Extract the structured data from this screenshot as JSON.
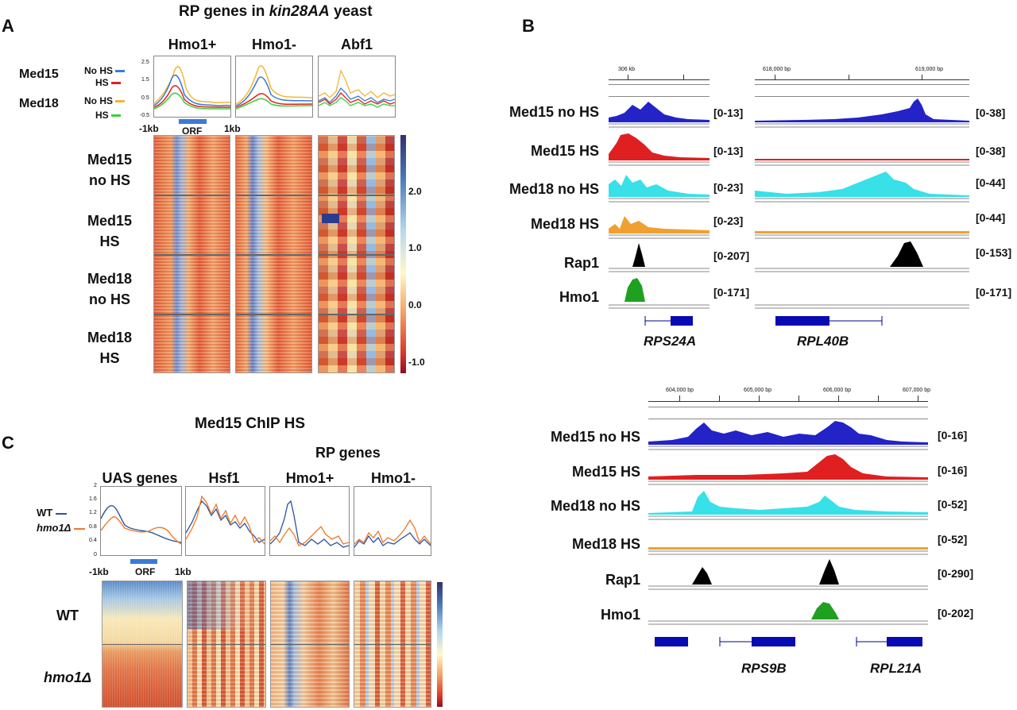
{
  "panel_a": {
    "letter": "A",
    "title_prefix": "RP genes in ",
    "title_italic": "kin28AA",
    "title_suffix": " yeast",
    "columns": [
      "Hmo1+",
      "Hmo1-",
      "Abf1"
    ],
    "legend_groups": [
      "Med15",
      "Med18"
    ],
    "legend_items": [
      {
        "label": "No HS",
        "color": "#3a7bd5"
      },
      {
        "label": "HS",
        "color": "#e02020"
      },
      {
        "label": "No HS",
        "color": "#f2b632"
      },
      {
        "label": "HS",
        "color": "#3fce3f"
      }
    ],
    "y_ticks": [
      "2.5",
      "1.5",
      "0.5",
      "-0.5"
    ],
    "x_left": "-1kb",
    "x_orf": "ORF",
    "x_right": "1kb",
    "rows": [
      {
        "l1": "Med15",
        "l2": "no HS"
      },
      {
        "l1": "Med15",
        "l2": "HS"
      },
      {
        "l1": "Med18",
        "l2": "no HS"
      },
      {
        "l1": "Med18",
        "l2": "HS"
      }
    ],
    "colorbar_ticks": [
      "2.0",
      "1.0",
      "0.0",
      "-1.0"
    ]
  },
  "panel_b": {
    "letter": "B",
    "top": {
      "tracks": [
        "Med15 no HS",
        "Med15 HS",
        "Med18 no HS",
        "Med18 HS",
        "Rap1",
        "Hmo1"
      ],
      "left_scale": "306 kb",
      "right_scale_1": "618,000 bp",
      "right_scale_2": "619,000 bp",
      "left_ranges": [
        "[0-13]",
        "[0-13]",
        "[0-23]",
        "[0-23]",
        "[0-207]",
        "[0-171]"
      ],
      "right_ranges": [
        "[0-38]",
        "[0-38]",
        "[0-44]",
        "[0-44]",
        "[0-153]",
        "[0-171]"
      ],
      "genes": [
        "RPS24A",
        "RPL40B"
      ]
    },
    "bottom": {
      "tracks": [
        "Med15 no HS",
        "Med15 HS",
        "Med18 no HS",
        "Med18 HS",
        "Rap1",
        "Hmo1"
      ],
      "scale": [
        "604,000 bp",
        "605,000 bp",
        "606,000 bp",
        "607,000 bp"
      ],
      "ranges": [
        "[0-16]",
        "[0-16]",
        "[0-52]",
        "[0-52]",
        "[0-290]",
        "[0-202]"
      ],
      "genes": [
        "RPS9B",
        "RPL21A"
      ]
    },
    "track_colors": [
      "#2323c8",
      "#e02020",
      "#38e0e8",
      "#f0a030",
      "#000000",
      "#20a020"
    ]
  },
  "panel_c": {
    "letter": "C",
    "title": "Med15 ChIP HS",
    "rp_label": "RP genes",
    "columns": [
      "UAS genes",
      "Hsf1",
      "Hmo1+",
      "Hmo1-"
    ],
    "legend": [
      {
        "label": "WT",
        "color": "#2c52a0"
      },
      {
        "label": "hmo1Δ",
        "color": "#ea7a2a"
      }
    ],
    "y_ticks": [
      "2",
      "1.6",
      "1.2",
      "0.8",
      "0.4",
      "0"
    ],
    "x_left": "-1kb",
    "x_orf": "ORF",
    "x_right": "1kb",
    "rows": [
      "WT",
      "hmo1Δ"
    ]
  }
}
